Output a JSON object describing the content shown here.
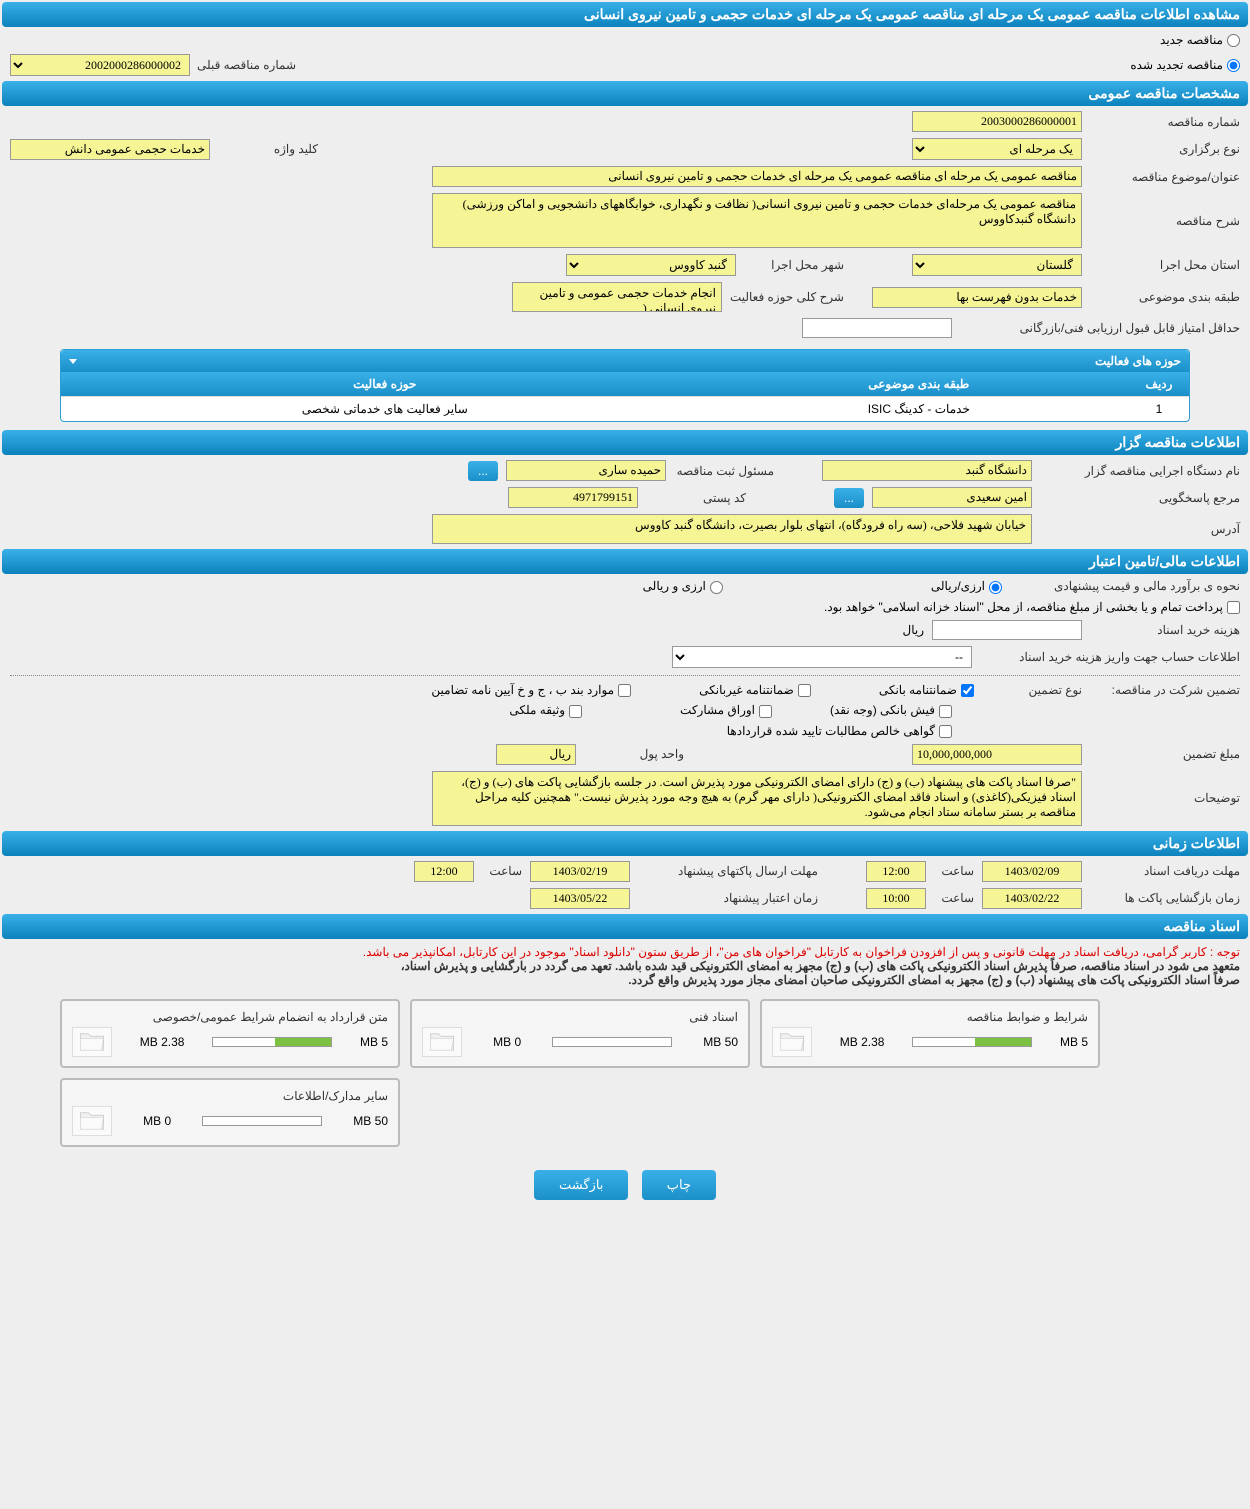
{
  "header": {
    "title": "مشاهده اطلاعات مناقصه عمومی یک مرحله ای مناقصه عمومی یک مرحله ای خدمات حجمی و تامین نیروی انسانی"
  },
  "tender_status": {
    "new_label": "مناقصه جدید",
    "renewed_label": "مناقصه تجدید شده",
    "prev_number_label": "شماره مناقصه قبلی",
    "prev_number_value": "2002000286000002"
  },
  "sections": {
    "general_specs": "مشخصات مناقصه عمومی",
    "tender_issuer": "اطلاعات مناقصه گزار",
    "financial": "اطلاعات مالی/تامین اعتبار",
    "time_info": "اطلاعات زمانی",
    "tender_docs": "اسناد مناقصه"
  },
  "general": {
    "tender_number_label": "شماره مناقصه",
    "tender_number": "2003000286000001",
    "holding_type_label": "نوع برگزاری",
    "holding_type": "یک مرحله ای",
    "keyword_label": "کلید واژه",
    "keyword": "خدمات حجمی عمومی دانش",
    "subject_label": "عنوان/موضوع مناقصه",
    "subject": "مناقصه عمومی یک مرحله ای مناقصه عمومی یک مرحله ای خدمات حجمی و تامین نیروی انسانی",
    "description_label": "شرح مناقصه",
    "description": "مناقصه عمومی یک مرحله‌ای خدمات حجمی و تامین نیروی انسانی( نظافت و نگهداری، خوابگاههای دانشجویی و اماکن ورزشی) دانشگاه گنبدکاووس",
    "exec_province_label": "استان محل اجرا",
    "exec_province": "گلستان",
    "exec_city_label": "شهر محل اجرا",
    "exec_city": "گنبد کاووس",
    "subject_category_label": "طبقه بندی موضوعی",
    "subject_category": "خدمات بدون فهرست بها",
    "activity_scope_label": "شرح کلی حوزه فعالیت",
    "activity_scope": "انجام خدمات حجمی عمومی و تامین نیروی انسانی (",
    "min_score_label": "حداقل امتیاز قابل قبول ارزیابی فنی/بازرگانی"
  },
  "activity_areas": {
    "title": "حوزه های فعالیت",
    "cols": {
      "row": "ردیف",
      "category": "طبقه بندی موضوعی",
      "scope": "حوزه فعالیت"
    },
    "rows": [
      {
        "row": "1",
        "category": "خدمات - کدینگ ISIC",
        "scope": "سایر فعالیت های خدماتی شخصی"
      }
    ]
  },
  "issuer": {
    "exec_device_label": "نام دستگاه اجرایی مناقصه گزار",
    "exec_device": "دانشگاه گنبد",
    "registrar_label": "مسئول ثبت مناقصه",
    "registrar": "حمیده ساری",
    "responder_label": "مرجع پاسخگویی",
    "responder": "امین سعیدی",
    "postal_code_label": "کد پستی",
    "postal_code": "4971799151",
    "address_label": "آدرس",
    "address": "خیابان شهید فلاحی، (سه راه فرودگاه)، انتهای بلوار بصیرت، دانشگاه گنبد کاووس",
    "more": "..."
  },
  "financial": {
    "estimate_label": "نحوه ی برآورد مالی و قیمت پیشنهادی",
    "currency_rial": "ارزی/ریالی",
    "currency_both": "ارزی و ریالی",
    "payment_note": "پرداخت تمام و یا بخشی از مبلغ مناقصه، از محل \"اسناد خزانه اسلامی\" خواهد بود.",
    "doc_cost_label": "هزینه خرید اسناد",
    "rial_unit": "ریال",
    "deposit_account_label": "اطلاعات حساب جهت واریز هزینه خرید اسناد",
    "deposit_account_placeholder": "--",
    "guarantee_section_label": "تضمین شرکت در مناقصه:",
    "guarantee_type_label": "نوع تضمین",
    "bank_guarantee": "ضمانتنامه بانکی",
    "nonbank_guarantee": "ضمانتنامه غیربانکی",
    "clauses": "موارد بند ب ، ج و خ آیین نامه تضامین",
    "bank_receipt": "فیش بانکی (وجه نقد)",
    "participation_bonds": "اوراق مشارکت",
    "property_bond": "وثیقه ملکی",
    "contract_cert": "گواهی خالص مطالبات تایید شده قراردادها",
    "guarantee_amount_label": "مبلغ تضمین",
    "guarantee_amount": "10,000,000,000",
    "currency_unit_label": "واحد پول",
    "currency_unit": "ریال",
    "notes_label": "توضیحات",
    "notes": "\"صرفا اسناد پاکت های پیشنهاد (ب) و (ج) دارای امضای الکترونیکی مورد پذیرش است. در جلسه بازگشایی پاکت های (ب) و (ج)، اسناد فیزیکی(کاغذی) و اسناد فاقد امضای الکترونیکی( دارای مهر گرم) به هیچ وجه مورد پذیرش نیست.\" همچنین کلیه مراحل مناقصه بر بستر سامانه ستاد انجام می‌شود."
  },
  "timing": {
    "doc_receive_deadline_label": "مهلت دریافت اسناد",
    "doc_receive_date": "1403/02/09",
    "time_label": "ساعت",
    "doc_receive_time": "12:00",
    "bid_send_deadline_label": "مهلت ارسال پاکتهای پیشنهاد",
    "bid_send_date": "1403/02/19",
    "bid_send_time": "12:00",
    "opening_time_label": "زمان بازگشایی پاکت ها",
    "opening_date": "1403/02/22",
    "opening_time": "10:00",
    "validity_label": "زمان اعتبار پیشنهاد",
    "validity_date": "1403/05/22"
  },
  "docs": {
    "notice_red": "توجه : کاربر گرامی، دریافت اسناد در مهلت قانونی و پس از افزودن فراخوان به کارتابل \"فراخوان های من\"، از طریق ستون \"دانلود اسناد\" موجود در این کارتابل، امکانپذیر می باشد.",
    "notice_bold1": "متعهد می شود در اسناد مناقصه، صرفاً پذیرش اسناد الکترونیکی پاکت های (ب) و (ج) مجهز به امضای الکترونیکی قید شده باشد. تعهد می گردد در بارگشایی و پذیرش اسناد،",
    "notice_bold2": "صرفاً اسناد الکترونیکی پاکت های پیشنهاد (ب) و (ج) مجهز به امضای الکترونیکی صاحبان امضای مجاز مورد پذیرش واقع گردد.",
    "cards": [
      {
        "title": "شرایط و ضوابط مناقصه",
        "used": "2.38 MB",
        "total": "5 MB",
        "fill_pct": 48
      },
      {
        "title": "اسناد فنی",
        "used": "0 MB",
        "total": "50 MB",
        "fill_pct": 0
      },
      {
        "title": "متن قرارداد به انضمام شرایط عمومی/خصوصی",
        "used": "2.38 MB",
        "total": "5 MB",
        "fill_pct": 48
      },
      {
        "title": "سایر مدارک/اطلاعات",
        "used": "0 MB",
        "total": "50 MB",
        "fill_pct": 0
      }
    ]
  },
  "buttons": {
    "print": "چاپ",
    "back": "بازگشت"
  },
  "style": {
    "header_gradient_top": "#3ab0e8",
    "header_gradient_bottom": "#0c82bd",
    "input_bg": "#f6f595",
    "progress_fill": "#7cc142",
    "red": "#d00",
    "body_bg": "#eee"
  }
}
